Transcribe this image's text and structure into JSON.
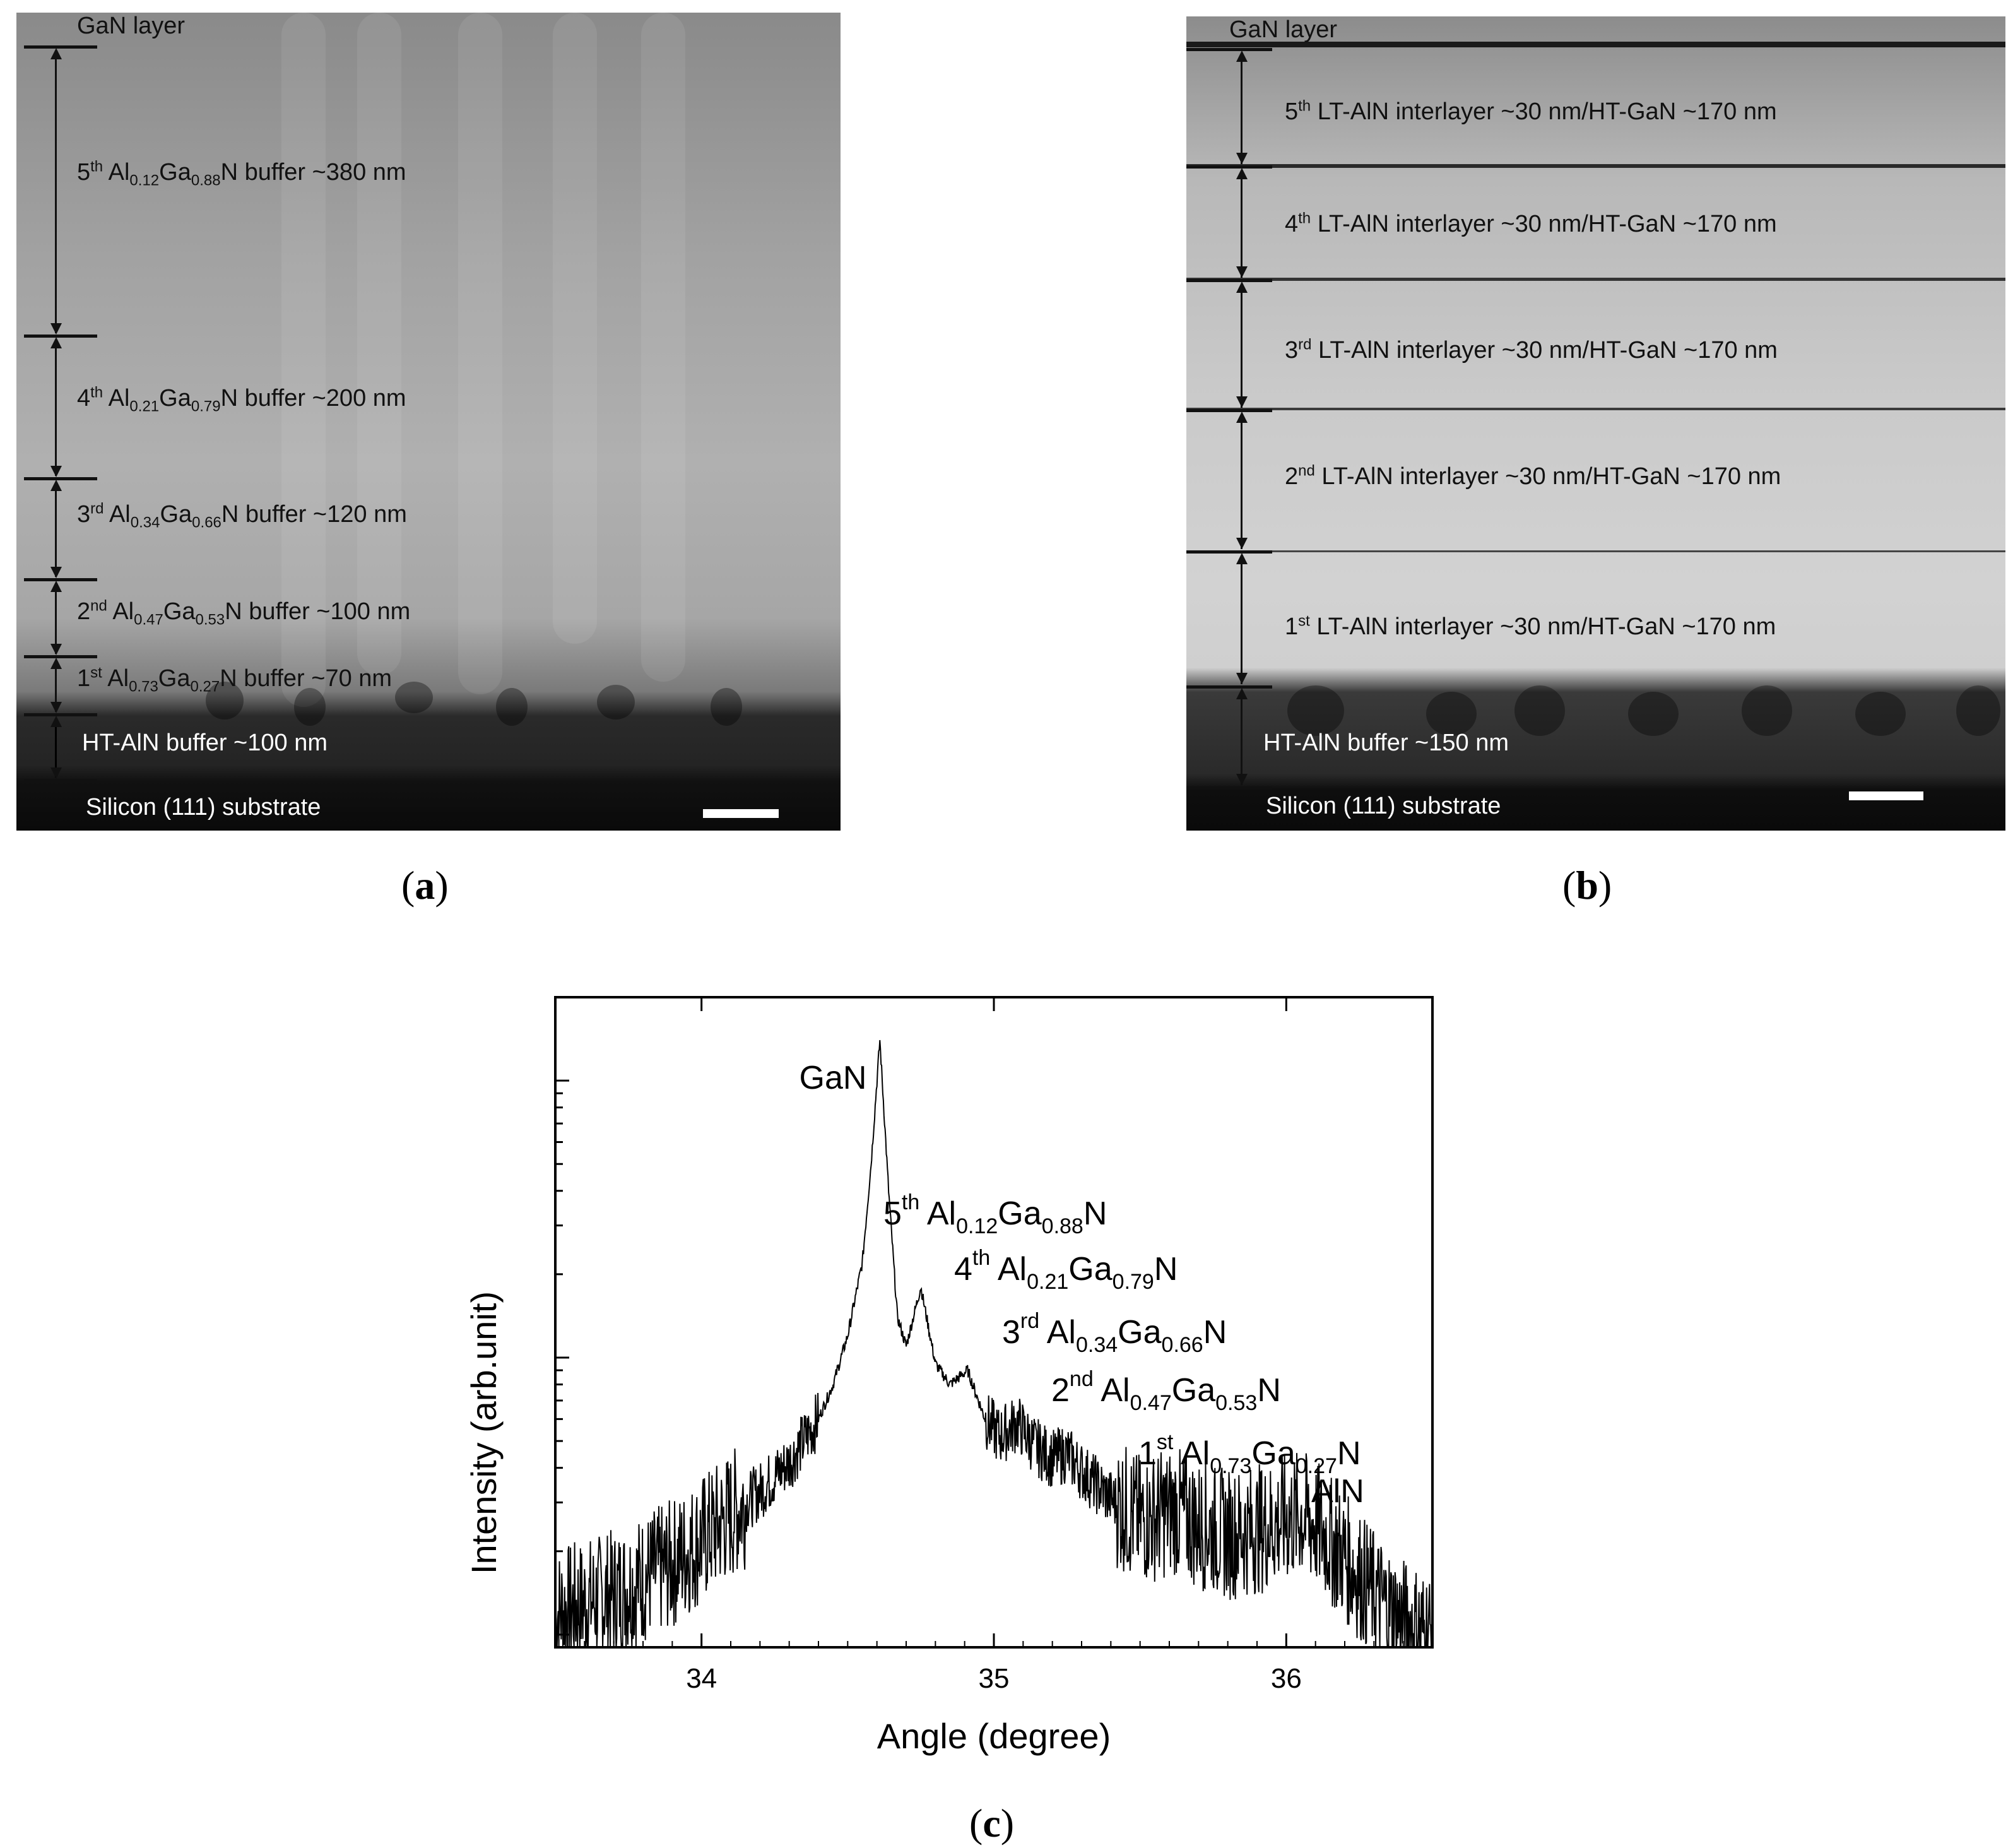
{
  "panel_a": {
    "gan_layer": "GaN layer",
    "layers": [
      {
        "ord": "5",
        "ord_sup": "th",
        "pre": "Al",
        "x_sub": "0.12",
        "mid": "Ga",
        "y_sub": "0.88",
        "post": "N buffer ~380 nm"
      },
      {
        "ord": "4",
        "ord_sup": "th",
        "pre": "Al",
        "x_sub": "0.21",
        "mid": "Ga",
        "y_sub": "0.79",
        "post": "N buffer ~200 nm"
      },
      {
        "ord": "3",
        "ord_sup": "rd",
        "pre": "Al",
        "x_sub": "0.34",
        "mid": "Ga",
        "y_sub": "0.66",
        "post": "N buffer ~120 nm"
      },
      {
        "ord": "2",
        "ord_sup": "nd",
        "pre": "Al",
        "x_sub": "0.47",
        "mid": "Ga",
        "y_sub": "0.53",
        "post": "N buffer ~100 nm"
      },
      {
        "ord": "1",
        "ord_sup": "st",
        "pre": "Al",
        "x_sub": "0.73",
        "mid": "Ga",
        "y_sub": "0.27",
        "post": "N buffer ~70 nm"
      }
    ],
    "ht_buffer": "HT-AlN buffer ~100 nm",
    "substrate": "Silicon (111) substrate",
    "caption": "a"
  },
  "panel_b": {
    "gan_layer": "GaN layer",
    "layers": [
      {
        "ord": "5",
        "ord_sup": "th",
        "text": " LT-AlN interlayer  ~30 nm/HT-GaN ~170 nm"
      },
      {
        "ord": "4",
        "ord_sup": "th",
        "text": " LT-AlN interlayer  ~30 nm/HT-GaN ~170 nm"
      },
      {
        "ord": "3",
        "ord_sup": "rd",
        "text": " LT-AlN interlayer  ~30 nm/HT-GaN ~170 nm"
      },
      {
        "ord": "2",
        "ord_sup": "nd",
        "text": " LT-AlN interlayer  ~30 nm/HT-GaN ~170 nm"
      },
      {
        "ord": "1",
        "ord_sup": "st",
        "text": " LT-AlN interlayer  ~30 nm/HT-GaN ~170 nm"
      }
    ],
    "ht_buffer": "HT-AlN buffer ~150 nm",
    "substrate": "Silicon (111) substrate",
    "caption": "b"
  },
  "panel_c": {
    "caption": "c"
  },
  "chart_data": {
    "type": "line",
    "xlabel": "Angle (degree)",
    "ylabel": "Intensity (arb.unit)",
    "xlim": [
      33.5,
      36.5
    ],
    "xticks": [
      "34",
      "35",
      "36"
    ],
    "y_scale": "log",
    "y_tick_labels": false,
    "grid": false,
    "peaks": [
      {
        "label": "GaN",
        "angle": 34.61
      },
      {
        "label_parts": [
          "5",
          "th",
          " Al",
          "0.12",
          "Ga",
          "0.88",
          "N"
        ],
        "angle": 34.75
      },
      {
        "label_parts": [
          "4",
          "th",
          " Al",
          "0.21",
          "Ga",
          "0.79",
          "N"
        ],
        "angle": 34.91
      },
      {
        "label_parts": [
          "3",
          "rd",
          " Al",
          "0.34",
          "Ga",
          "0.66",
          "N"
        ],
        "angle": 35.08
      },
      {
        "label_parts": [
          "2",
          "nd",
          " Al",
          "0.47",
          "Ga",
          "0.53",
          "N"
        ],
        "angle": 35.25
      },
      {
        "label_parts": [
          "1",
          "st",
          " Al",
          "0.73",
          "Ga",
          "0.27",
          "N"
        ],
        "angle": 35.62
      },
      {
        "label": "AlN",
        "angle": 36.05
      }
    ],
    "series": [
      {
        "x": [
          33.5,
          33.7,
          33.9,
          34.0,
          34.1,
          34.2,
          34.3,
          34.4,
          34.45,
          34.5,
          34.55,
          34.58,
          34.61,
          34.64,
          34.67,
          34.7,
          34.75,
          34.8,
          34.85,
          34.91,
          34.97,
          35.02,
          35.08,
          35.14,
          35.2,
          35.25,
          35.3,
          35.4,
          35.5,
          35.62,
          35.7,
          35.8,
          35.9,
          36.0,
          36.05,
          36.1,
          36.2,
          36.3,
          36.4,
          36.5
        ],
        "y": [
          1.2,
          1.4,
          1.8,
          2.2,
          2.7,
          3.3,
          4.2,
          6.0,
          8.0,
          12.0,
          22.0,
          50.0,
          140.0,
          40.0,
          14.0,
          11.0,
          18.0,
          9.5,
          8.0,
          9.0,
          6.0,
          5.2,
          5.8,
          4.8,
          4.3,
          4.5,
          3.9,
          3.1,
          2.6,
          2.8,
          2.5,
          2.3,
          2.4,
          2.6,
          2.7,
          2.5,
          1.9,
          1.4,
          1.1,
          1.0
        ]
      }
    ]
  }
}
